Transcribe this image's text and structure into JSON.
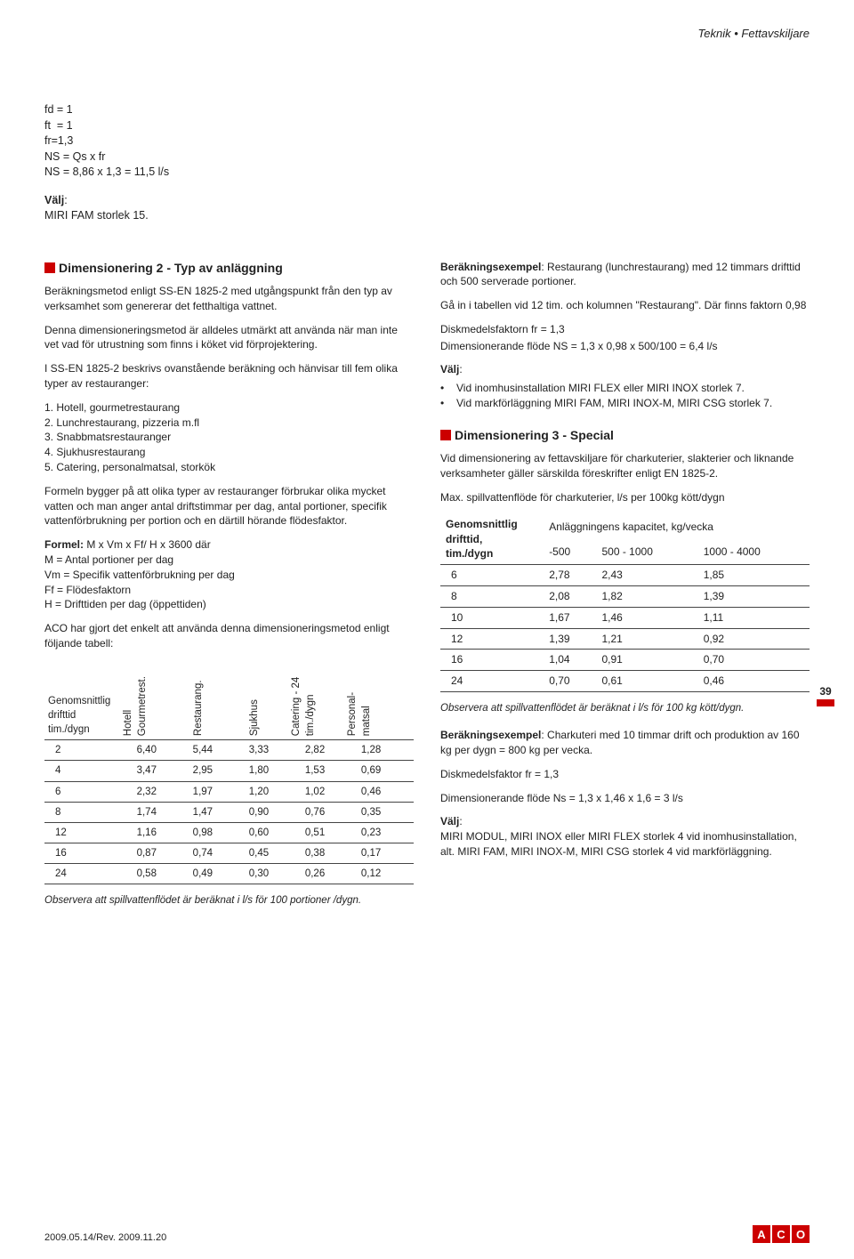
{
  "header": {
    "breadcrumb": "Teknik • Fettavskiljare"
  },
  "intro": {
    "lines": "fd = 1\nft  = 1\nfr=1,3\nNS = Qs x fr\nNS = 8,86 x 1,3 = 11,5 l/s",
    "valj_label": "Välj",
    "valj_text": "MIRI FAM storlek 15."
  },
  "left": {
    "dim2_title": "Dimensionering 2 - Typ av anläggning",
    "p1": "Beräkningsmetod enligt SS-EN 1825-2 med utgångspunkt från den typ av verksamhet som genererar det fetthaltiga vattnet.",
    "p2": "Denna dimensioneringsmetod är alldeles utmärkt att använda när man inte vet vad för utrustning som finns i köket vid förprojektering.",
    "p3": "I SS-EN 1825-2 beskrivs ovanstående beräkning och hänvisar till fem olika typer av restauranger:",
    "types": [
      "Hotell, gourmetrestaurang",
      "Lunchrestaurang, pizzeria m.fl",
      "Snabbmatsrestauranger",
      "Sjukhusrestaurang",
      "Catering, personalmatsal, storkök"
    ],
    "p4": "Formeln bygger på att olika typer av restauranger förbrukar olika mycket vatten och man anger antal driftstimmar per dag, antal portioner, specifik vattenförbrukning per portion och en därtill hörande flödesfaktor.",
    "formula_label": "Formel:",
    "formula_rhs": " M x Vm x Ff/ H x 3600 där",
    "formula_rows": [
      "M   = Antal portioner per dag",
      "Vm = Specifik vattenförbrukning per dag",
      "Ff   = Flödesfaktorn",
      "H    = Drifttiden per dag (öppettiden)"
    ],
    "p5": "ACO har gjort det enkelt att använda denna dimensioneringsmetod enligt följande tabell:",
    "table1": {
      "rowhead": "Genomsnittlig\ndrifttid\ntim./dygn",
      "cols": [
        "Hotell\nGourmetrest.",
        "Restaurang.",
        "Sjukhus",
        "Catering - 24\ntim./dygn",
        "Personal-\nmatsal"
      ],
      "rows": [
        [
          "2",
          "6,40",
          "5,44",
          "3,33",
          "2,82",
          "1,28"
        ],
        [
          "4",
          "3,47",
          "2,95",
          "1,80",
          "1,53",
          "0,69"
        ],
        [
          "6",
          "2,32",
          "1,97",
          "1,20",
          "1,02",
          "0,46"
        ],
        [
          "8",
          "1,74",
          "1,47",
          "0,90",
          "0,76",
          "0,35"
        ],
        [
          "12",
          "1,16",
          "0,98",
          "0,60",
          "0,51",
          "0,23"
        ],
        [
          "16",
          "0,87",
          "0,74",
          "0,45",
          "0,38",
          "0,17"
        ],
        [
          "24",
          "0,58",
          "0,49",
          "0,30",
          "0,26",
          "0,12"
        ]
      ]
    },
    "foot1": "Observera att spillvattenflödet är beräknat i l/s för 100 portioner /dygn."
  },
  "right": {
    "ex_label": "Beräkningsexempel",
    "ex_text": ": Restaurang (lunchrestaurang) med 12 timmars drifttid och 500 serverade portioner.",
    "p1": "Gå in i tabellen vid 12 tim. och kolumnen \"Restaurang\". Där finns faktorn 0,98",
    "p2": "Diskmedelsfaktorn fr = 1,3",
    "p3": "Dimensionerande flöde NS = 1,3 x 0,98 x 500/100 = 6,4 l/s",
    "valj_label": "Välj",
    "bullets": [
      "Vid inomhusinstallation MIRI FLEX eller MIRI INOX storlek 7.",
      "Vid markförläggning MIRI FAM, MIRI INOX-M, MIRI CSG storlek 7."
    ],
    "dim3_title": "Dimensionering 3 - Special",
    "p4": "Vid dimensionering av fettavskiljare för charkuterier, slakterier och liknande verksamheter gäller särskilda föreskrifter enligt EN 1825-2.",
    "p5": "Max. spillvattenflöde för charkuterier, l/s per 100kg kött/dygn",
    "table2": {
      "head_left": "Genomsnittlig\ndrifttid,\ntim./dygn",
      "head_right": "Anläggningens kapacitet, kg/vecka",
      "subheads": [
        "-500",
        "500 - 1000",
        "1000 - 4000"
      ],
      "rows": [
        [
          "6",
          "2,78",
          "2,43",
          "1,85"
        ],
        [
          "8",
          "2,08",
          "1,82",
          "1,39"
        ],
        [
          "10",
          "1,67",
          "1,46",
          "1,11"
        ],
        [
          "12",
          "1,39",
          "1,21",
          "0,92"
        ],
        [
          "16",
          "1,04",
          "0,91",
          "0,70"
        ],
        [
          "24",
          "0,70",
          "0,61",
          "0,46"
        ]
      ]
    },
    "foot2": "Observera att spillvattenflödet är beräknat i l/s för 100 kg kött/dygn.",
    "ex2_label": "Beräkningsexempel",
    "ex2_text": ": Charkuteri med 10 timmar drift och produktion av 160 kg per dygn = 800 kg per vecka.",
    "p6": "Diskmedelsfaktor fr = 1,3",
    "p7": "Dimensionerande flöde Ns = 1,3 x 1,46 x 1,6 = 3 l/s",
    "valj2_label": "Välj",
    "p8": "MIRI MODUL, MIRI INOX eller MIRI FLEX storlek 4 vid inomhusinstallation, alt. MIRI FAM, MIRI INOX-M, MIRI CSG storlek 4 vid markförläggning."
  },
  "page": {
    "num": "39"
  },
  "footer": {
    "rev": "2009.05.14/Rev. 2009.11.20",
    "logo": [
      "A",
      "C",
      "O"
    ]
  }
}
